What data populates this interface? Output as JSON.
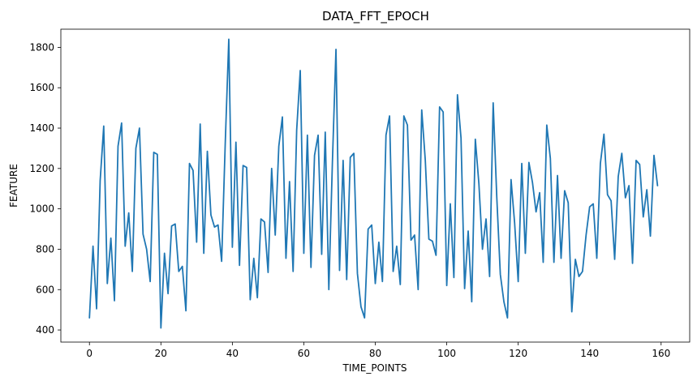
{
  "chart_data": {
    "type": "line",
    "title": "DATA_FFT_EPOCH",
    "xlabel": "TIME_POINTS",
    "ylabel": "FEATURE",
    "xlim": [
      -8,
      168
    ],
    "ylim": [
      340,
      1890
    ],
    "xticks": [
      0,
      20,
      40,
      60,
      80,
      100,
      120,
      140,
      160
    ],
    "yticks": [
      400,
      600,
      800,
      1000,
      1200,
      1400,
      1600,
      1800
    ],
    "grid": false,
    "series": [
      {
        "color": "#1f77b4",
        "x": [
          0,
          1,
          2,
          3,
          4,
          5,
          6,
          7,
          8,
          9,
          10,
          11,
          12,
          13,
          14,
          15,
          16,
          17,
          18,
          19,
          20,
          21,
          22,
          23,
          24,
          25,
          26,
          27,
          28,
          29,
          30,
          31,
          32,
          33,
          34,
          35,
          36,
          37,
          38,
          39,
          40,
          41,
          42,
          43,
          44,
          45,
          46,
          47,
          48,
          49,
          50,
          51,
          52,
          53,
          54,
          55,
          56,
          57,
          58,
          59,
          60,
          61,
          62,
          63,
          64,
          65,
          66,
          67,
          68,
          69,
          70,
          71,
          72,
          73,
          74,
          75,
          76,
          77,
          78,
          79,
          80,
          81,
          82,
          83,
          84,
          85,
          86,
          87,
          88,
          89,
          90,
          91,
          92,
          93,
          94,
          95,
          96,
          97,
          98,
          99,
          100,
          101,
          102,
          103,
          104,
          105,
          106,
          107,
          108,
          109,
          110,
          111,
          112,
          113,
          114,
          115,
          116,
          117,
          118,
          119,
          120,
          121,
          122,
          123,
          124,
          125,
          126,
          127,
          128,
          129,
          130,
          131,
          132,
          133,
          134,
          135,
          136,
          137,
          138,
          139,
          140,
          141,
          142,
          143,
          144,
          145,
          146,
          147,
          148,
          149,
          150,
          151,
          152,
          153,
          154,
          155,
          156,
          157,
          158,
          159
        ],
        "y": [
          460,
          815,
          505,
          1140,
          1410,
          630,
          855,
          545,
          1310,
          1425,
          815,
          980,
          690,
          1300,
          1400,
          875,
          800,
          640,
          1280,
          1270,
          410,
          780,
          580,
          915,
          925,
          690,
          715,
          495,
          1225,
          1190,
          835,
          1420,
          780,
          1285,
          970,
          910,
          920,
          740,
          1320,
          1840,
          810,
          1330,
          720,
          1215,
          1205,
          550,
          755,
          560,
          950,
          935,
          685,
          1200,
          870,
          1310,
          1455,
          755,
          1135,
          690,
          1390,
          1685,
          780,
          1365,
          710,
          1265,
          1365,
          775,
          1380,
          600,
          1230,
          1790,
          695,
          1240,
          650,
          1255,
          1275,
          680,
          515,
          460,
          900,
          920,
          630,
          835,
          640,
          1365,
          1460,
          690,
          815,
          625,
          1460,
          1415,
          845,
          870,
          600,
          1490,
          1240,
          850,
          840,
          770,
          1505,
          1480,
          620,
          1025,
          660,
          1565,
          1350,
          605,
          890,
          540,
          1345,
          1125,
          800,
          950,
          665,
          1525,
          1060,
          675,
          540,
          460,
          1145,
          930,
          640,
          1225,
          780,
          1230,
          1130,
          985,
          1080,
          735,
          1415,
          1250,
          735,
          1165,
          755,
          1090,
          1030,
          490,
          750,
          665,
          690,
          870,
          1010,
          1025,
          755,
          1225,
          1370,
          1070,
          1040,
          750,
          1160,
          1275,
          1055,
          1115,
          730,
          1240,
          1220,
          960,
          1095,
          865,
          1265,
          1115
        ]
      }
    ]
  }
}
